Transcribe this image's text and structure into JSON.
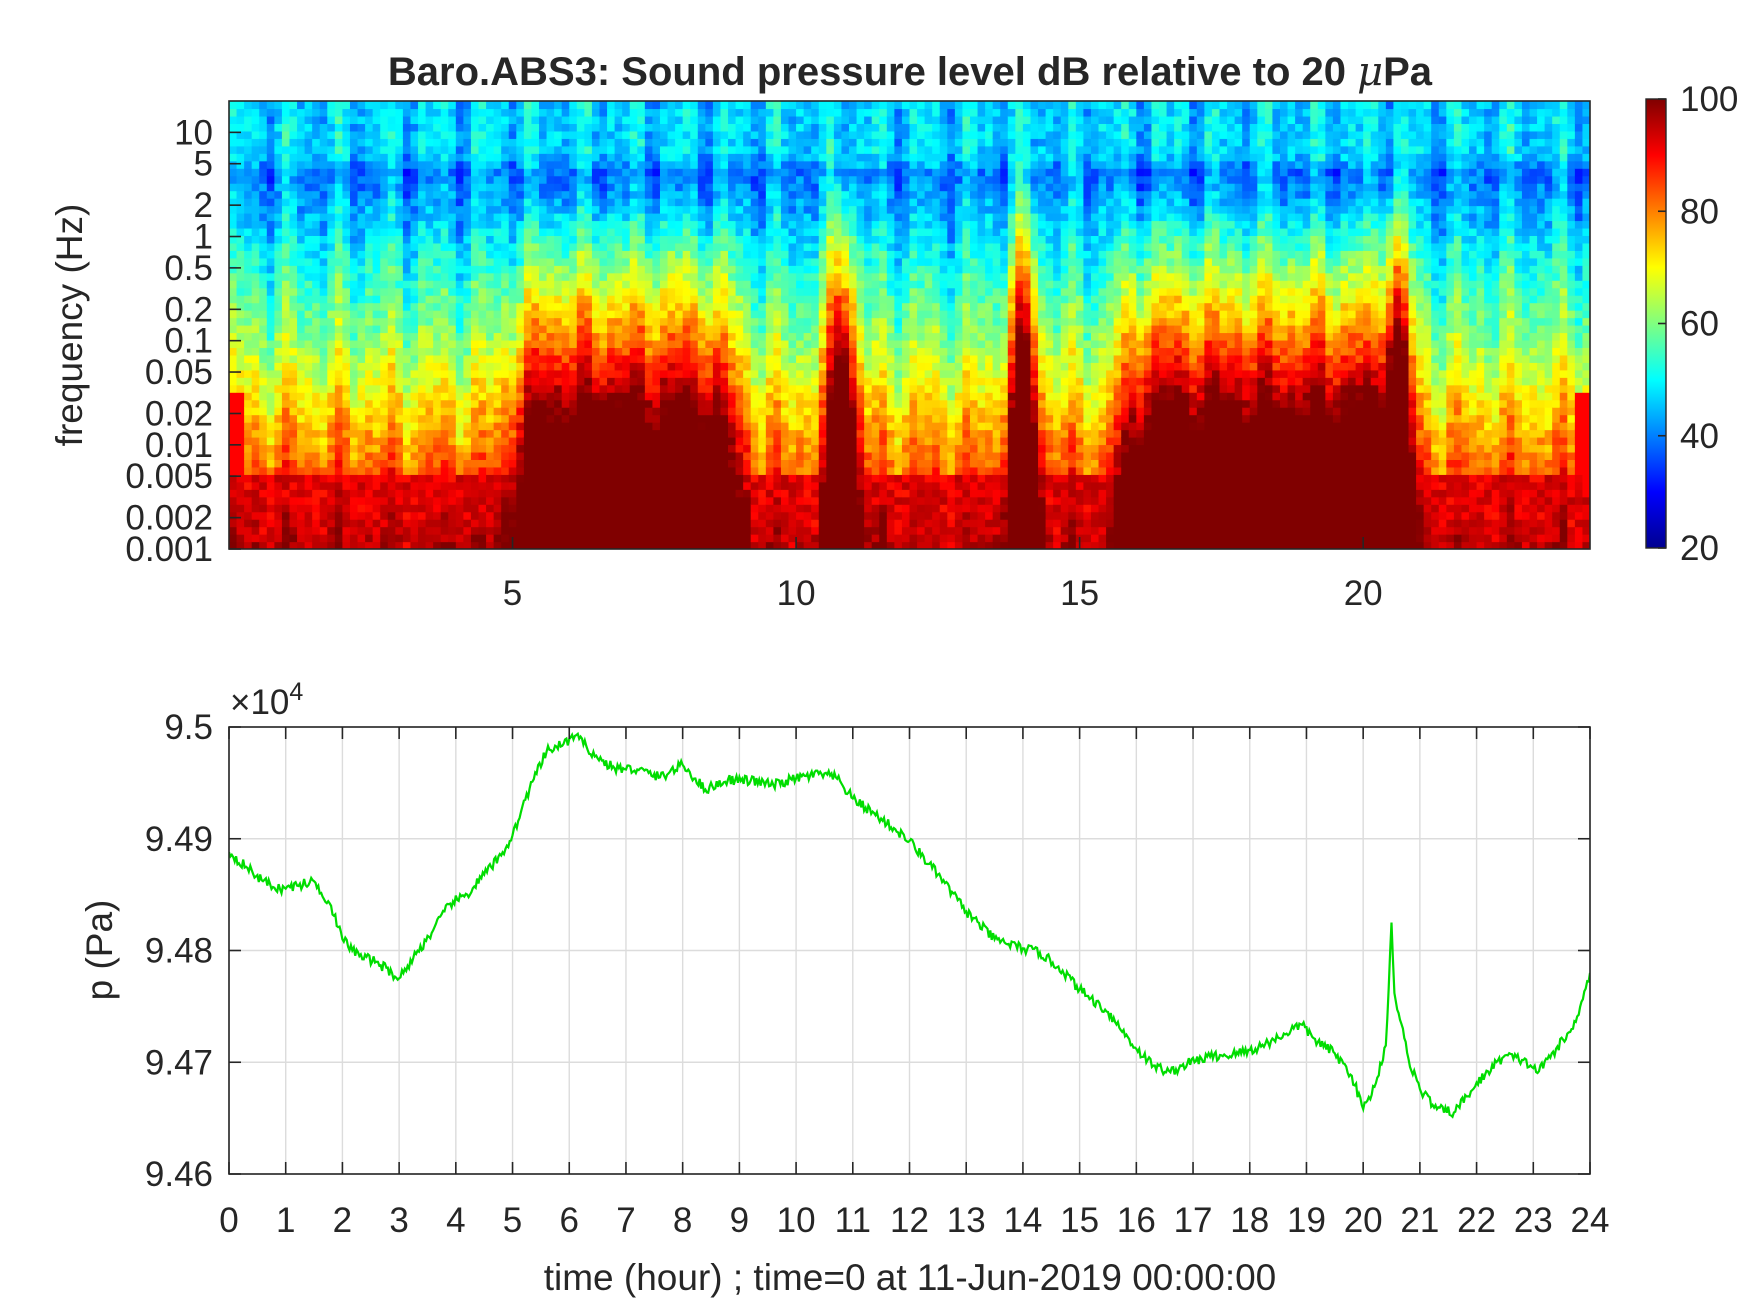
{
  "chart_data": [
    {
      "type": "heatmap",
      "title_prefix": "Baro.ABS3: Sound pressure level dB relative to 20 ",
      "title_mu": "μ",
      "title_suffix": "Pa",
      "ylabel": "frequency (Hz)",
      "xlabel": "",
      "y_scale": "log",
      "xlim": [
        0,
        24
      ],
      "ylim": [
        0.001,
        20
      ],
      "x_ticks": [
        5,
        10,
        15,
        20
      ],
      "y_ticks": [
        {
          "value": 10,
          "label": "10"
        },
        {
          "value": 5,
          "label": "5"
        },
        {
          "value": 2,
          "label": "2"
        },
        {
          "value": 1,
          "label": "1"
        },
        {
          "value": 0.5,
          "label": "0.5"
        },
        {
          "value": 0.2,
          "label": "0.2"
        },
        {
          "value": 0.1,
          "label": "0.1"
        },
        {
          "value": 0.05,
          "label": "0.05"
        },
        {
          "value": 0.02,
          "label": "0.02"
        },
        {
          "value": 0.01,
          "label": "0.01"
        },
        {
          "value": 0.005,
          "label": "0.005"
        },
        {
          "value": 0.002,
          "label": "0.002"
        },
        {
          "value": 0.001,
          "label": "0.001"
        }
      ],
      "colormap": "jet",
      "colorbar": {
        "range": [
          20,
          100
        ],
        "ticks": [
          {
            "value": 100,
            "label": "100"
          },
          {
            "value": 80,
            "label": "80"
          },
          {
            "value": 60,
            "label": "60"
          },
          {
            "value": 40,
            "label": "40"
          },
          {
            "value": 20,
            "label": "20"
          }
        ]
      },
      "events_hours": [
        10.8,
        14.0,
        20.6
      ],
      "active_periods": [
        [
          5.5,
          8.5
        ],
        [
          16.2,
          20.0
        ]
      ]
    },
    {
      "type": "line",
      "xlabel": "time (hour) ; time=0 at 11-Jun-2019 00:00:00",
      "ylabel": "p (Pa)",
      "exponent_base": "×10",
      "exponent_power": "4",
      "xlim": [
        0,
        24
      ],
      "ylim": [
        9.46,
        9.5
      ],
      "x_ticks": [
        "0",
        "1",
        "2",
        "3",
        "4",
        "5",
        "6",
        "7",
        "8",
        "9",
        "10",
        "11",
        "12",
        "13",
        "14",
        "15",
        "16",
        "17",
        "18",
        "19",
        "20",
        "21",
        "22",
        "23",
        "24"
      ],
      "y_ticks": [
        {
          "value": 9.5,
          "label": "9.5"
        },
        {
          "value": 9.49,
          "label": "9.49"
        },
        {
          "value": 9.48,
          "label": "9.48"
        },
        {
          "value": 9.47,
          "label": "9.47"
        },
        {
          "value": 9.46,
          "label": "9.46"
        }
      ],
      "grid": true,
      "line_color": "#00dd00",
      "series": [
        {
          "x": [
            0,
            0.3,
            0.6,
            0.9,
            1.2,
            1.5,
            1.8,
            2.0,
            2.3,
            2.6,
            3.0,
            3.3,
            3.6,
            3.9,
            4.2,
            4.5,
            4.8,
            5.0,
            5.3,
            5.6,
            5.9,
            6.1,
            6.3,
            6.5,
            6.8,
            7.2,
            7.6,
            8.0,
            8.4,
            8.8,
            9.2,
            9.6,
            10.0,
            10.4,
            10.7,
            11.0,
            11.5,
            12.0,
            12.5,
            13.0,
            13.5,
            14.0,
            14.3,
            14.7,
            15.0,
            15.5,
            16.0,
            16.3,
            16.6,
            16.9,
            17.3,
            17.7,
            18.1,
            18.5,
            18.9,
            19.2,
            19.5,
            19.8,
            20.0,
            20.2,
            20.4,
            20.5,
            20.55,
            20.65,
            20.8,
            21.0,
            21.3,
            21.6,
            21.9,
            22.2,
            22.5,
            22.8,
            23.1,
            23.4,
            23.7,
            24.0
          ],
          "y": [
            9.4888,
            9.4875,
            9.4862,
            9.4855,
            9.4858,
            9.4862,
            9.484,
            9.481,
            9.4795,
            9.479,
            9.4775,
            9.4797,
            9.4818,
            9.4842,
            9.485,
            9.4868,
            9.4885,
            9.4903,
            9.4945,
            9.4978,
            9.4985,
            9.4992,
            9.4983,
            9.4972,
            9.4963,
            9.4962,
            9.4955,
            9.4966,
            9.4944,
            9.4953,
            9.4952,
            9.4948,
            9.4954,
            9.4958,
            9.4955,
            9.4936,
            9.4918,
            9.4898,
            9.4868,
            9.4835,
            9.481,
            9.4802,
            9.4798,
            9.4782,
            9.4765,
            9.4745,
            9.4712,
            9.4697,
            9.4691,
            9.4699,
            9.4705,
            9.4707,
            9.4712,
            9.4722,
            9.4734,
            9.4718,
            9.4708,
            9.4688,
            9.4658,
            9.4678,
            9.4715,
            9.4825,
            9.4762,
            9.4738,
            9.4703,
            9.4676,
            9.4658,
            9.4655,
            9.4674,
            9.4692,
            9.4706,
            9.4702,
            9.4692,
            9.4712,
            9.473,
            9.478
          ]
        }
      ]
    }
  ]
}
